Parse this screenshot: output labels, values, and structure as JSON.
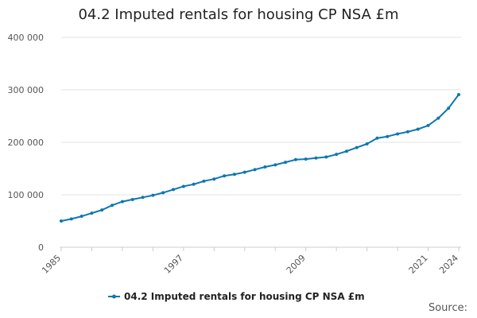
{
  "chart_data": {
    "type": "line",
    "title": "04.2 Imputed rentals for housing CP NSA £m",
    "xlabel": "",
    "ylabel": "",
    "xlim": [
      1985,
      2024
    ],
    "ylim": [
      0,
      400000
    ],
    "y_ticks": [
      0,
      100000,
      200000,
      300000,
      400000
    ],
    "y_tick_labels": [
      "0",
      "100 000",
      "200 000",
      "300 000",
      "400 000"
    ],
    "x_ticks": [
      1985,
      1997,
      2009,
      2021,
      2024
    ],
    "x_tick_labels": [
      "1985",
      "1997",
      "2009",
      "2021",
      "2024"
    ],
    "grid": true,
    "legend_position": "bottom",
    "series": [
      {
        "name": "04.2 Imputed rentals for housing CP NSA £m",
        "color": "#0e77b1",
        "x": [
          1985,
          1986,
          1987,
          1988,
          1989,
          1990,
          1991,
          1992,
          1993,
          1994,
          1995,
          1996,
          1997,
          1998,
          1999,
          2000,
          2001,
          2002,
          2003,
          2004,
          2005,
          2006,
          2007,
          2008,
          2009,
          2010,
          2011,
          2012,
          2013,
          2014,
          2015,
          2016,
          2017,
          2018,
          2019,
          2020,
          2021,
          2022,
          2023,
          2024
        ],
        "values": [
          50000,
          54000,
          59000,
          65000,
          71000,
          80000,
          87000,
          91000,
          95000,
          99000,
          104000,
          110000,
          116000,
          120000,
          126000,
          130000,
          136000,
          139000,
          143000,
          148000,
          153000,
          157000,
          162000,
          167000,
          168000,
          170000,
          172000,
          177000,
          183000,
          190000,
          197000,
          208000,
          211000,
          216000,
          220000,
          225000,
          232000,
          246000,
          265000,
          291000
        ]
      }
    ]
  },
  "source": {
    "label": "Source:"
  }
}
